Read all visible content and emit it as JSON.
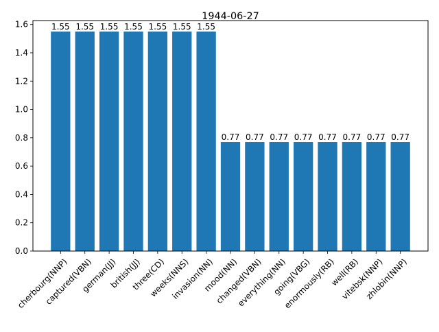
{
  "chart_data": {
    "type": "bar",
    "title": "1944-06-27",
    "xlabel": "",
    "ylabel": "",
    "categories": [
      "cherbourg(NNP)",
      "captured(VBN)",
      "german(JJ)",
      "british(JJ)",
      "three(CD)",
      "weeks(NNS)",
      "invasion(NN)",
      "mood(NN)",
      "changed(VBN)",
      "everything(NN)",
      "going(VBG)",
      "enormously(RB)",
      "well(RB)",
      "vitebsk(NNP)",
      "zhlobin(NNP)"
    ],
    "values": [
      1.55,
      1.55,
      1.55,
      1.55,
      1.55,
      1.55,
      1.55,
      0.77,
      0.77,
      0.77,
      0.77,
      0.77,
      0.77,
      0.77,
      0.77
    ],
    "value_labels": [
      "1.55",
      "1.55",
      "1.55",
      "1.55",
      "1.55",
      "1.55",
      "1.55",
      "0.77",
      "0.77",
      "0.77",
      "0.77",
      "0.77",
      "0.77",
      "0.77",
      "0.77"
    ],
    "yticks": [
      0.0,
      0.2,
      0.4,
      0.6,
      0.8,
      1.0,
      1.2,
      1.4,
      1.6
    ],
    "ytick_labels": [
      "0.0",
      "0.2",
      "0.4",
      "0.6",
      "0.8",
      "1.0",
      "1.2",
      "1.4",
      "1.6"
    ],
    "ylim": [
      0,
      1.6275
    ],
    "bar_color": "#1f77b4",
    "grid": false,
    "legend": "none"
  }
}
